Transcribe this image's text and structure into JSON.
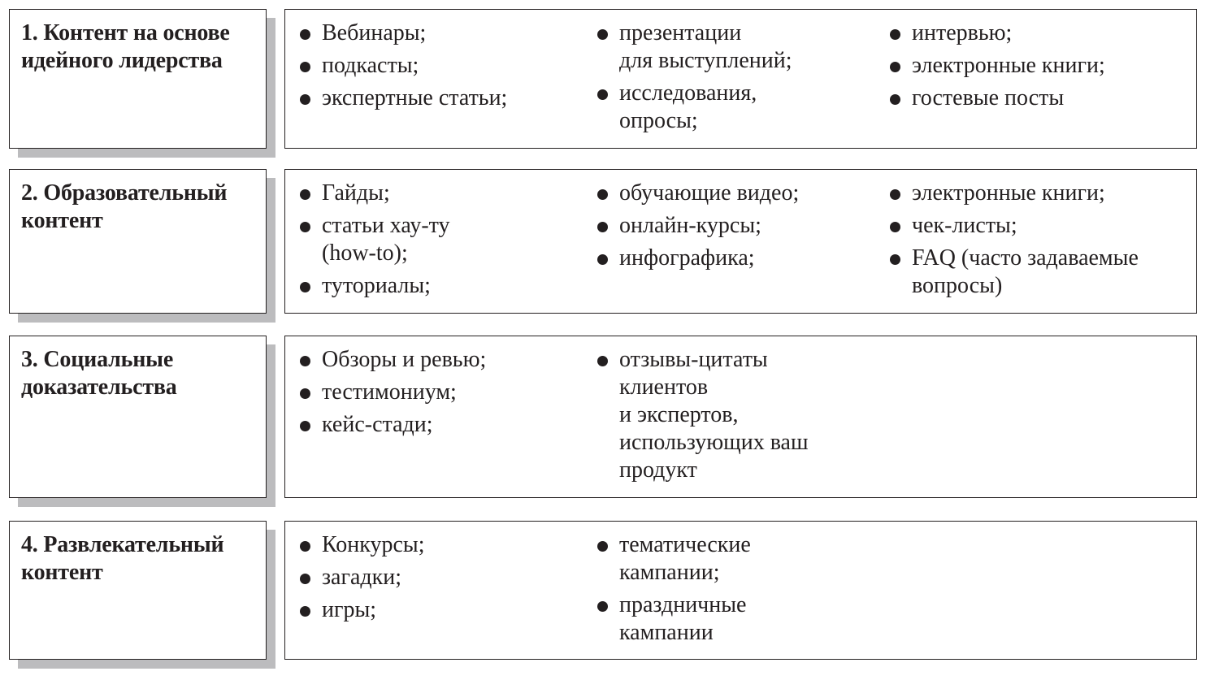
{
  "rows": [
    {
      "title": [
        "1. Контент на основе",
        "идейного лидерства"
      ],
      "columns": [
        [
          [
            "Вебинары;"
          ],
          [
            "подкасты;"
          ],
          [
            "экспертные статьи;"
          ]
        ],
        [
          [
            "презентации",
            "для выступлений;"
          ],
          [
            "исследования,",
            "опросы;"
          ]
        ],
        [
          [
            "интервью;"
          ],
          [
            "электронные книги;"
          ],
          [
            "гостевые посты"
          ]
        ]
      ]
    },
    {
      "title": [
        "2. Образовательный",
        "контент"
      ],
      "columns": [
        [
          [
            "Гайды;"
          ],
          [
            "статьи хау-ту",
            "(how-to);"
          ],
          [
            "туториалы;"
          ]
        ],
        [
          [
            "обучающие видео;"
          ],
          [
            "онлайн-курсы;"
          ],
          [
            "инфографика;"
          ]
        ],
        [
          [
            "электронные книги;"
          ],
          [
            "чек-листы;"
          ],
          [
            "FAQ (часто задаваемые",
            "вопросы)"
          ]
        ]
      ]
    },
    {
      "title": [
        "3. Социальные",
        "доказательства"
      ],
      "columns": [
        [
          [
            "Обзоры и ревью;"
          ],
          [
            "тестимониум;"
          ],
          [
            "кейс-стади;"
          ]
        ],
        [
          [
            "отзывы-цитаты",
            "клиентов",
            "и экспертов,",
            "использующих ваш",
            "продукт"
          ]
        ]
      ]
    },
    {
      "title": [
        "4. Развлекательный",
        "контент"
      ],
      "columns": [
        [
          [
            "Конкурсы;"
          ],
          [
            "загадки;"
          ],
          [
            "игры;"
          ]
        ],
        [
          [
            "тематические",
            "кампании;"
          ],
          [
            "праздничные",
            "кампании"
          ]
        ]
      ]
    }
  ],
  "colors": {
    "border": "#231f20",
    "shadow": "#bcbcbe"
  }
}
